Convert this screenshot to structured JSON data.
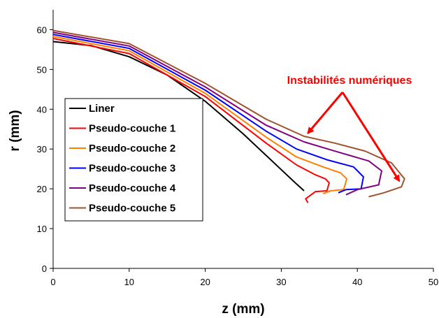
{
  "chart_data": {
    "type": "line",
    "xlabel": "z (mm)",
    "ylabel": "r (mm)",
    "xlim": [
      0,
      50
    ],
    "ylim": [
      0,
      65
    ],
    "xticks": [
      "0",
      "10",
      "20",
      "30",
      "40",
      "50"
    ],
    "yticks": [
      "0",
      "10",
      "20",
      "30",
      "40",
      "50",
      "60"
    ],
    "grid": false,
    "legend_position": "center-left",
    "annotation": {
      "text": "Instabilités numériques",
      "color": "#ff0000",
      "arrow_targets": [
        [
          33.5,
          34.0
        ],
        [
          45.5,
          22.0
        ]
      ]
    },
    "series": [
      {
        "name": "Liner",
        "color": "#000000",
        "x": [
          0,
          5,
          10,
          15,
          20,
          25,
          30,
          32,
          33
        ],
        "y": [
          57.0,
          56.0,
          53.2,
          48.6,
          42.0,
          33.8,
          24.8,
          21.2,
          19.5
        ]
      },
      {
        "name": "Pseudo-couche 1",
        "color": "#ff0000",
        "x": [
          0,
          10,
          20,
          28,
          32,
          34.5,
          35.8,
          36.3,
          36.0,
          34.5,
          33.2,
          33.5
        ],
        "y": [
          57.8,
          54.0,
          43.2,
          31.5,
          26.0,
          23.5,
          22.5,
          21.5,
          19.5,
          19.3,
          17.5,
          16.5
        ]
      },
      {
        "name": "Pseudo-couche 2",
        "color": "#ff8000",
        "x": [
          0,
          10,
          20,
          28,
          32,
          35.5,
          37.8,
          38.6,
          38.2,
          36.5,
          35.5
        ],
        "y": [
          58.3,
          54.7,
          44.0,
          33.0,
          28.0,
          25.5,
          24.0,
          22.5,
          19.8,
          19.5,
          18.8
        ]
      },
      {
        "name": "Pseudo-couche 3",
        "color": "#0000ff",
        "x": [
          0,
          10,
          20,
          28,
          32,
          36,
          39.5,
          40.8,
          40.5,
          38.5,
          37.5
        ],
        "y": [
          58.8,
          55.3,
          44.8,
          34.5,
          30.0,
          27.3,
          25.5,
          23.0,
          20.0,
          19.8,
          19.0
        ]
      },
      {
        "name": "Pseudo-couche 4",
        "color": "#800080",
        "x": [
          0,
          10,
          20,
          28,
          33,
          37,
          41.5,
          43.2,
          42.8,
          40.0,
          38.5
        ],
        "y": [
          59.3,
          55.9,
          45.6,
          36.0,
          31.8,
          29.5,
          27.0,
          24.5,
          21.0,
          19.8,
          18.5
        ]
      },
      {
        "name": "Pseudo-couche 5",
        "color": "#a0522d",
        "x": [
          0,
          10,
          20,
          28,
          33,
          37,
          41,
          44.5,
          46.2,
          45.8,
          43.5,
          41.5
        ],
        "y": [
          59.8,
          56.5,
          46.5,
          37.5,
          33.2,
          31.5,
          29.5,
          26.5,
          22.5,
          20.5,
          19.0,
          18.0
        ]
      }
    ]
  }
}
